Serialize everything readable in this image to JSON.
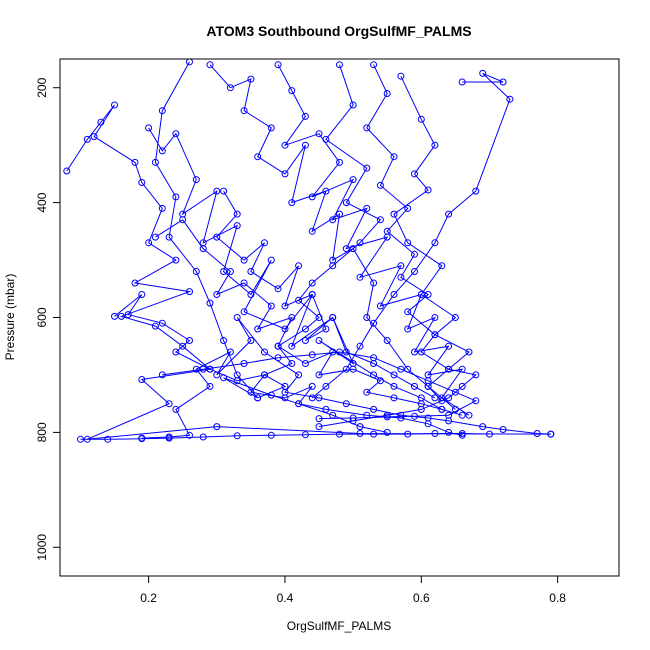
{
  "chart_data": {
    "type": "line",
    "title": "ATOM3 Southbound OrgSulfMF_PALMS",
    "xlabel": "OrgSulfMF_PALMS",
    "ylabel": "Pressure (mbar)",
    "xlim": [
      0.07,
      0.89
    ],
    "ylim": [
      1050,
      150
    ],
    "y_reversed": true,
    "x_ticks": [
      "0.2",
      "0.4",
      "0.6",
      "0.8"
    ],
    "y_ticks": [
      "200",
      "400",
      "600",
      "800",
      "1000"
    ],
    "grid": false,
    "legend": "none",
    "line_color": "#0000ff",
    "marker": "open-circle",
    "series": [
      {
        "x": [
          0.26,
          0.22,
          0.21,
          0.24,
          0.23,
          0.27,
          0.29,
          0.31,
          0.33,
          0.36,
          0.31,
          0.38,
          0.42,
          0.46,
          0.52,
          0.57,
          0.61,
          0.64,
          0.66
        ],
        "y": [
          155,
          240,
          330,
          390,
          460,
          520,
          575,
          640,
          700,
          740,
          705,
          735,
          750,
          760,
          770,
          775,
          785,
          800,
          805
        ]
      },
      {
        "x": [
          0.08,
          0.11,
          0.13,
          0.15,
          0.12,
          0.18,
          0.19,
          0.22,
          0.2,
          0.24,
          0.18,
          0.26,
          0.16,
          0.21,
          0.25,
          0.29,
          0.19,
          0.23,
          0.11,
          0.3,
          0.51,
          0.79
        ],
        "y": [
          345,
          290,
          260,
          230,
          285,
          330,
          365,
          410,
          470,
          500,
          540,
          555,
          598,
          615,
          650,
          690,
          708,
          750,
          812,
          790,
          802,
          803
        ]
      },
      {
        "x": [
          0.2,
          0.22,
          0.24,
          0.27,
          0.25,
          0.3,
          0.28,
          0.33,
          0.31,
          0.35,
          0.38,
          0.34,
          0.4,
          0.44,
          0.41,
          0.47,
          0.5,
          0.45,
          0.53,
          0.56,
          0.6,
          0.63,
          0.66
        ],
        "y": [
          270,
          310,
          280,
          360,
          420,
          380,
          470,
          440,
          520,
          560,
          500,
          590,
          620,
          560,
          650,
          600,
          680,
          640,
          700,
          720,
          740,
          760,
          770
        ]
      },
      {
        "x": [
          0.39,
          0.41,
          0.43,
          0.4,
          0.45,
          0.48,
          0.44,
          0.5,
          0.47,
          0.52,
          0.49,
          0.55,
          0.51,
          0.57,
          0.54,
          0.6,
          0.58,
          0.62,
          0.59,
          0.64,
          0.61,
          0.66,
          0.63,
          0.67
        ],
        "y": [
          160,
          205,
          250,
          300,
          280,
          330,
          390,
          360,
          430,
          410,
          480,
          460,
          530,
          510,
          580,
          560,
          620,
          600,
          660,
          650,
          700,
          690,
          740,
          770
        ]
      },
      {
        "x": [
          0.57,
          0.6,
          0.62,
          0.59,
          0.61,
          0.56,
          0.58,
          0.63,
          0.6,
          0.65,
          0.62,
          0.67,
          0.64,
          0.68,
          0.66,
          0.64,
          0.6,
          0.55,
          0.5,
          0.45
        ],
        "y": [
          180,
          255,
          300,
          350,
          378,
          420,
          470,
          510,
          560,
          600,
          630,
          660,
          690,
          700,
          720,
          740,
          760,
          770,
          780,
          790
        ]
      },
      {
        "x": [
          0.66,
          0.72,
          0.69,
          0.73,
          0.68,
          0.64,
          0.62,
          0.59,
          0.56,
          0.53,
          0.51,
          0.49,
          0.46,
          0.44
        ],
        "y": [
          190,
          190,
          175,
          220,
          380,
          420,
          470,
          520,
          560,
          610,
          650,
          690,
          720,
          740
        ]
      },
      {
        "x": [
          0.29,
          0.32,
          0.35,
          0.34,
          0.38,
          0.36,
          0.4,
          0.43,
          0.41,
          0.46,
          0.44,
          0.48,
          0.47,
          0.5,
          0.53,
          0.52,
          0.55,
          0.58,
          0.61,
          0.63
        ],
        "y": [
          160,
          200,
          185,
          240,
          270,
          320,
          350,
          300,
          400,
          380,
          450,
          420,
          500,
          480,
          540,
          600,
          640,
          690,
          720,
          745
        ]
      },
      {
        "x": [
          0.19,
          0.23,
          0.26,
          0.24,
          0.29,
          0.27,
          0.32,
          0.3,
          0.35,
          0.33,
          0.37,
          0.42,
          0.4,
          0.45,
          0.49,
          0.53,
          0.57,
          0.61,
          0.64,
          0.69,
          0.72,
          0.77,
          0.79
        ],
        "y": [
          810,
          808,
          805,
          760,
          720,
          690,
          660,
          700,
          640,
          600,
          660,
          700,
          730,
          740,
          750,
          760,
          770,
          775,
          780,
          790,
          795,
          802,
          803
        ]
      },
      {
        "x": [
          0.1,
          0.14,
          0.19,
          0.23,
          0.28,
          0.33,
          0.38,
          0.43,
          0.48,
          0.53,
          0.58,
          0.62,
          0.66,
          0.7
        ],
        "y": [
          812,
          812,
          811,
          810,
          808,
          806,
          805,
          804,
          803,
          803,
          803,
          802,
          802,
          803
        ]
      },
      {
        "x": [
          0.48,
          0.5,
          0.46,
          0.52,
          0.49,
          0.54,
          0.51,
          0.47,
          0.44,
          0.42,
          0.45,
          0.43,
          0.39,
          0.41,
          0.37,
          0.4,
          0.36
        ],
        "y": [
          160,
          230,
          290,
          340,
          400,
          430,
          470,
          510,
          540,
          570,
          600,
          620,
          650,
          680,
          700,
          720,
          740
        ]
      },
      {
        "x": [
          0.21,
          0.25,
          0.28,
          0.32,
          0.3,
          0.34,
          0.38,
          0.36,
          0.41,
          0.39,
          0.43,
          0.47,
          0.45,
          0.5,
          0.54,
          0.52,
          0.56,
          0.6,
          0.63
        ],
        "y": [
          460,
          430,
          480,
          520,
          560,
          540,
          580,
          620,
          600,
          650,
          680,
          660,
          700,
          690,
          710,
          730,
          740,
          750,
          760
        ]
      },
      {
        "x": [
          0.15,
          0.19,
          0.17,
          0.22,
          0.26,
          0.24,
          0.29,
          0.33,
          0.37,
          0.35,
          0.4,
          0.44,
          0.42,
          0.47,
          0.51,
          0.55
        ],
        "y": [
          598,
          560,
          595,
          610,
          640,
          660,
          690,
          710,
          700,
          730,
          740,
          720,
          750,
          770,
          790,
          800
        ]
      },
      {
        "x": [
          0.31,
          0.33,
          0.3,
          0.34,
          0.37,
          0.35,
          0.39,
          0.42,
          0.4,
          0.44,
          0.46,
          0.43,
          0.47,
          0.49,
          0.53,
          0.56,
          0.59,
          0.62
        ],
        "y": [
          380,
          420,
          460,
          500,
          470,
          520,
          550,
          510,
          580,
          560,
          620,
          640,
          600,
          660,
          680,
          700,
          720,
          740
        ]
      },
      {
        "x": [
          0.53,
          0.55,
          0.52,
          0.56,
          0.54,
          0.58,
          0.55,
          0.59,
          0.57,
          0.61,
          0.58,
          0.62,
          0.6,
          0.64,
          0.61,
          0.65
        ],
        "y": [
          160,
          210,
          270,
          320,
          370,
          410,
          450,
          490,
          530,
          560,
          590,
          630,
          660,
          690,
          720,
          760
        ]
      },
      {
        "x": [
          0.22,
          0.28,
          0.34,
          0.39,
          0.44,
          0.48,
          0.53,
          0.57,
          0.61,
          0.65,
          0.68,
          0.64,
          0.59,
          0.55,
          0.5,
          0.45
        ],
        "y": [
          700,
          690,
          680,
          670,
          665,
          660,
          670,
          690,
          710,
          730,
          745,
          770,
          772,
          773,
          775,
          776
        ]
      }
    ]
  }
}
